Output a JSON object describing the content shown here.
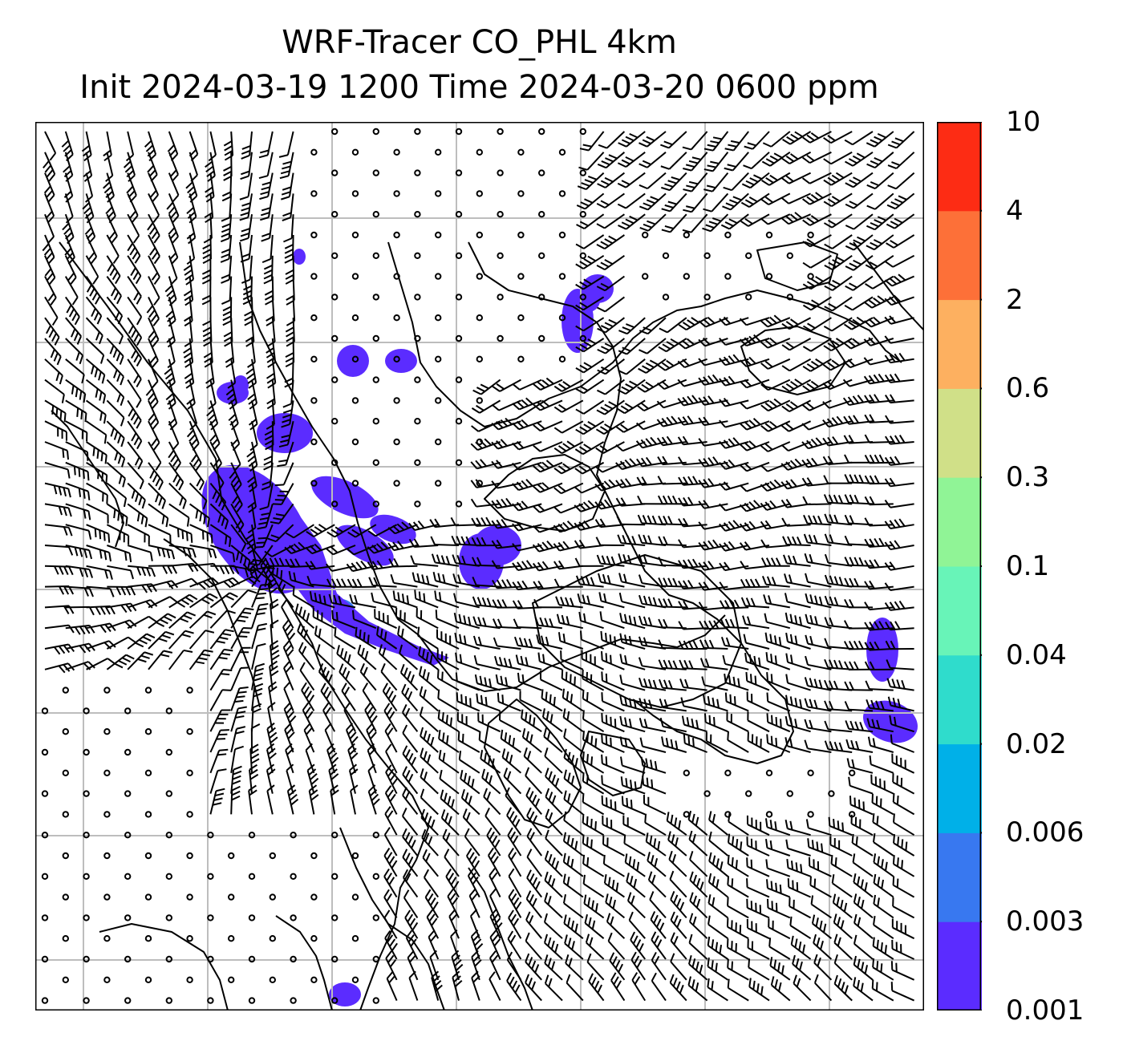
{
  "title": {
    "line1": "WRF-Tracer CO_PHL 4km",
    "line2": "Init 2024-03-19 1200 Time 2024-03-20 0600 ppm"
  },
  "colorbar": {
    "ticks": [
      "10",
      "4",
      "2",
      "0.6",
      "0.3",
      "0.1",
      "0.04",
      "0.02",
      "0.006",
      "0.003",
      "0.001"
    ],
    "colors": [
      "#5b2cff",
      "#3878f0",
      "#00b0e8",
      "#2fdccc",
      "#68f4b8",
      "#90f496",
      "#d0e088",
      "#fdb060",
      "#fd7038",
      "#fd2c14"
    ]
  },
  "map": {
    "gridlines": "on",
    "wind_barbs": "on",
    "coastlines": "on",
    "plume_color": "#5b2cff",
    "plume_core_color": "#3878f0"
  }
}
